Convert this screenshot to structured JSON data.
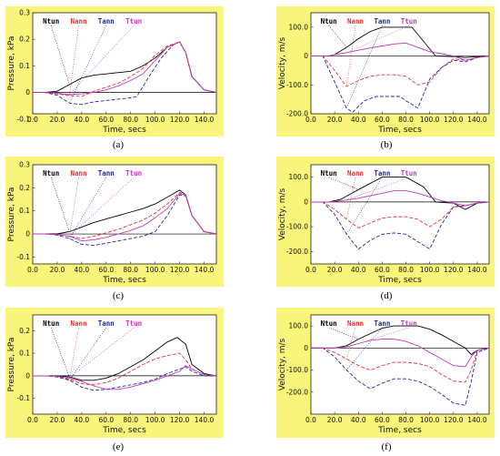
{
  "colors": {
    "panel_bg": "#f9f57a",
    "Ntun": "#000000",
    "Nann": "#e8322f",
    "Tann": "#1f2a9e",
    "Ttun": "#c13ab5"
  },
  "chart_data": [
    {
      "type": "line",
      "caption": "(a)",
      "xlabel": "Time, secs",
      "ylabel": "Pressure, kPa",
      "xlim": [
        0,
        150
      ],
      "ylim": [
        -0.08,
        0.3
      ],
      "xticks": [
        "0.0",
        "20.0",
        "40.0",
        "60.0",
        "80.0",
        "100.0",
        "120.0",
        "140.0"
      ],
      "yticks": [
        "-0.1",
        "0",
        "0.1",
        "0.2",
        "0.3"
      ],
      "legend": [
        "Ntun",
        "Nann",
        "Tann",
        "Ttun"
      ],
      "series": [
        {
          "name": "Ntun",
          "x": [
            0,
            10,
            20,
            30,
            40,
            50,
            60,
            70,
            80,
            90,
            100,
            110,
            120,
            125,
            130,
            140,
            150
          ],
          "y": [
            0,
            0,
            0.005,
            0.03,
            0.055,
            0.065,
            0.07,
            0.075,
            0.08,
            0.1,
            0.13,
            0.17,
            0.19,
            0.15,
            0.06,
            0.01,
            0
          ]
        },
        {
          "name": "Nann",
          "x": [
            0,
            10,
            20,
            30,
            40,
            50,
            60,
            70,
            80,
            90,
            100,
            110,
            120,
            125,
            130,
            140,
            150
          ],
          "y": [
            0,
            0,
            -0.005,
            -0.012,
            -0.015,
            0.005,
            0.02,
            0.035,
            0.06,
            0.09,
            0.14,
            0.175,
            0.19,
            0.15,
            0.06,
            0.01,
            0
          ]
        },
        {
          "name": "Tann",
          "x": [
            0,
            10,
            20,
            30,
            40,
            50,
            60,
            70,
            80,
            85,
            95,
            105,
            115,
            120,
            125,
            130,
            140,
            150
          ],
          "y": [
            0,
            0,
            -0.01,
            -0.04,
            -0.045,
            -0.035,
            -0.03,
            -0.025,
            -0.02,
            -0.015,
            0.06,
            0.13,
            0.18,
            0.19,
            0.15,
            0.06,
            0.01,
            0
          ]
        },
        {
          "name": "Ttun",
          "x": [
            0,
            10,
            20,
            30,
            40,
            50,
            60,
            70,
            80,
            90,
            100,
            110,
            120,
            125,
            130,
            140,
            150
          ],
          "y": [
            0,
            0,
            -0.003,
            -0.008,
            -0.005,
            0,
            0.01,
            0.025,
            0.045,
            0.07,
            0.12,
            0.17,
            0.19,
            0.15,
            0.06,
            0.01,
            0
          ]
        }
      ]
    },
    {
      "type": "line",
      "caption": "(b)",
      "xlabel": "Time, secs",
      "ylabel": "Velocity, m/s",
      "xlim": [
        0,
        150
      ],
      "ylim": [
        -200,
        150
      ],
      "xticks": [
        "0.0",
        "20.0",
        "40.0",
        "60.0",
        "80.0",
        "100.0",
        "120.0",
        "140.0"
      ],
      "yticks": [
        "-200.0",
        "-100.0",
        "0",
        "100.0"
      ],
      "legend": [
        "Ntun",
        "Nann",
        "Tann",
        "Ttun"
      ],
      "series": [
        {
          "name": "Ntun",
          "x": [
            0,
            15,
            20,
            30,
            40,
            50,
            60,
            85,
            105,
            120,
            130,
            140,
            150
          ],
          "y": [
            0,
            0,
            5,
            30,
            60,
            85,
            100,
            100,
            0,
            -2,
            -5,
            -2,
            0
          ]
        },
        {
          "name": "Nann",
          "x": [
            0,
            10,
            20,
            30,
            40,
            50,
            60,
            70,
            80,
            90,
            100,
            110,
            120,
            130,
            140,
            150
          ],
          "y": [
            0,
            0,
            -50,
            -105,
            -85,
            -70,
            -65,
            -65,
            -70,
            -100,
            -90,
            -40,
            -10,
            -15,
            -5,
            0
          ]
        },
        {
          "name": "Tann",
          "x": [
            0,
            10,
            20,
            30,
            35,
            45,
            55,
            65,
            75,
            80,
            90,
            100,
            110,
            120,
            130,
            140,
            150
          ],
          "y": [
            0,
            0,
            -90,
            -180,
            -195,
            -155,
            -140,
            -140,
            -140,
            -155,
            -180,
            -80,
            -40,
            -15,
            -20,
            -5,
            0
          ]
        },
        {
          "name": "Ttun",
          "x": [
            0,
            15,
            20,
            30,
            40,
            50,
            60,
            70,
            80,
            90,
            100,
            110,
            120,
            130,
            140,
            150
          ],
          "y": [
            0,
            0,
            5,
            12,
            20,
            28,
            35,
            42,
            45,
            30,
            15,
            8,
            0,
            -15,
            -5,
            0
          ]
        }
      ]
    },
    {
      "type": "line",
      "caption": "(c)",
      "xlabel": "Time, secs",
      "ylabel": "Pressure, kPa",
      "xlim": [
        0,
        150
      ],
      "ylim": [
        -0.13,
        0.3
      ],
      "xticks": [
        "0.0",
        "20.0",
        "40.0",
        "60.0",
        "80.0",
        "100.0",
        "120.0",
        "140.0"
      ],
      "yticks": [
        "-0.1",
        "0",
        "0.1",
        "0.2",
        "0.3"
      ],
      "legend": [
        "Ntun",
        "Nann",
        "Tann",
        "Ttun"
      ],
      "series": [
        {
          "name": "Ntun",
          "x": [
            0,
            10,
            20,
            30,
            40,
            50,
            60,
            70,
            80,
            90,
            100,
            110,
            120,
            125,
            130,
            140,
            150
          ],
          "y": [
            0,
            0,
            0,
            0.01,
            0.03,
            0.05,
            0.065,
            0.08,
            0.095,
            0.11,
            0.13,
            0.16,
            0.19,
            0.17,
            0.08,
            0.01,
            0
          ]
        },
        {
          "name": "Nann",
          "x": [
            0,
            10,
            20,
            30,
            40,
            50,
            60,
            70,
            80,
            90,
            100,
            110,
            120,
            125,
            130,
            140,
            150
          ],
          "y": [
            0,
            0,
            -0.003,
            -0.01,
            -0.02,
            -0.01,
            0.005,
            0.02,
            0.04,
            0.06,
            0.09,
            0.13,
            0.18,
            0.17,
            0.08,
            0.01,
            0
          ]
        },
        {
          "name": "Tann",
          "x": [
            0,
            10,
            20,
            30,
            40,
            50,
            60,
            70,
            80,
            90,
            100,
            110,
            120,
            125,
            130,
            140,
            150
          ],
          "y": [
            0,
            0,
            -0.005,
            -0.02,
            -0.045,
            -0.05,
            -0.04,
            -0.03,
            -0.02,
            -0.01,
            0.01,
            0.08,
            0.17,
            0.165,
            0.08,
            0.01,
            0
          ]
        },
        {
          "name": "Ttun",
          "x": [
            0,
            10,
            20,
            30,
            40,
            50,
            60,
            70,
            80,
            90,
            100,
            110,
            120,
            125,
            130,
            140,
            150
          ],
          "y": [
            0,
            0,
            -0.003,
            -0.01,
            -0.03,
            -0.025,
            -0.015,
            0,
            0.015,
            0.035,
            0.07,
            0.11,
            0.175,
            0.17,
            0.08,
            0.01,
            0
          ]
        }
      ]
    },
    {
      "type": "line",
      "caption": "(d)",
      "xlabel": "Time, secs",
      "ylabel": "Velocity, m/s",
      "xlim": [
        0,
        150
      ],
      "ylim": [
        -250,
        150
      ],
      "xticks": [
        "0.0",
        "20.0",
        "40.0",
        "60.0",
        "80.0",
        "100.0",
        "120.0",
        "140.0"
      ],
      "yticks": [
        "-200.0",
        "-100.0",
        "0",
        "100.0"
      ],
      "legend": [
        "Ntun",
        "Nann",
        "Tann",
        "Ttun"
      ],
      "series": [
        {
          "name": "Ntun",
          "x": [
            0,
            15,
            25,
            40,
            60,
            80,
            95,
            105,
            120,
            130,
            140,
            150
          ],
          "y": [
            0,
            0,
            10,
            50,
            100,
            100,
            60,
            0,
            -5,
            -30,
            -5,
            0
          ]
        },
        {
          "name": "Nann",
          "x": [
            0,
            10,
            20,
            30,
            40,
            50,
            60,
            70,
            80,
            90,
            100,
            110,
            120,
            130,
            140,
            150
          ],
          "y": [
            0,
            0,
            -30,
            -70,
            -105,
            -85,
            -65,
            -60,
            -60,
            -70,
            -100,
            -70,
            -20,
            -15,
            -5,
            0
          ]
        },
        {
          "name": "Tann",
          "x": [
            0,
            10,
            20,
            30,
            40,
            50,
            60,
            70,
            80,
            90,
            100,
            110,
            120,
            130,
            140,
            150
          ],
          "y": [
            0,
            0,
            -50,
            -130,
            -190,
            -155,
            -130,
            -125,
            -130,
            -160,
            -190,
            -90,
            -20,
            -15,
            -5,
            0
          ]
        },
        {
          "name": "Ttun",
          "x": [
            0,
            15,
            20,
            30,
            40,
            50,
            60,
            70,
            80,
            90,
            100,
            110,
            120,
            130,
            140,
            150
          ],
          "y": [
            0,
            0,
            2,
            8,
            15,
            25,
            35,
            45,
            45,
            35,
            20,
            5,
            -5,
            -15,
            -5,
            0
          ]
        }
      ]
    },
    {
      "type": "line",
      "caption": "(e)",
      "xlabel": "Time, secs",
      "ylabel": "Pressure, kPa",
      "xlim": [
        0,
        150
      ],
      "ylim": [
        -0.17,
        0.27
      ],
      "xticks": [
        "0.0",
        "20.0",
        "40.0",
        "60.0",
        "80.0",
        "100.0",
        "120.0",
        "140.0"
      ],
      "yticks": [
        "-0.1",
        "0",
        "0.1",
        "0.2"
      ],
      "legend": [
        "Ntun",
        "Nann",
        "Tann",
        "Ttun"
      ],
      "series": [
        {
          "name": "Ntun",
          "x": [
            0,
            10,
            20,
            30,
            40,
            50,
            60,
            70,
            80,
            90,
            100,
            110,
            118,
            125,
            130,
            140,
            150
          ],
          "y": [
            0,
            0,
            0,
            -0.005,
            -0.02,
            -0.02,
            -0.01,
            0.01,
            0.04,
            0.07,
            0.11,
            0.15,
            0.17,
            0.14,
            0.05,
            0.01,
            0
          ]
        },
        {
          "name": "Nann",
          "x": [
            0,
            10,
            20,
            30,
            40,
            50,
            60,
            70,
            80,
            90,
            100,
            110,
            120,
            125,
            130,
            140,
            150
          ],
          "y": [
            0,
            0,
            -0.005,
            -0.015,
            -0.035,
            -0.04,
            -0.03,
            -0.01,
            0.02,
            0.05,
            0.075,
            0.09,
            0.1,
            0.07,
            0.03,
            0.005,
            0
          ]
        },
        {
          "name": "Tann",
          "x": [
            0,
            10,
            20,
            30,
            40,
            50,
            60,
            70,
            80,
            90,
            100,
            110,
            120,
            125,
            130,
            140,
            150
          ],
          "y": [
            0,
            0,
            -0.005,
            -0.02,
            -0.05,
            -0.065,
            -0.06,
            -0.05,
            -0.04,
            -0.03,
            -0.015,
            0.01,
            0.03,
            0.04,
            0.02,
            0,
            0
          ]
        },
        {
          "name": "Ttun",
          "x": [
            0,
            10,
            20,
            30,
            40,
            50,
            60,
            70,
            80,
            90,
            100,
            110,
            120,
            125,
            130,
            140,
            150
          ],
          "y": [
            0,
            0,
            -0.003,
            -0.01,
            -0.025,
            -0.045,
            -0.06,
            -0.06,
            -0.05,
            -0.035,
            -0.02,
            0,
            0.02,
            0.045,
            0.03,
            0.005,
            0
          ]
        }
      ]
    },
    {
      "type": "line",
      "caption": "(f)",
      "xlabel": "Time, secs",
      "ylabel": "Velocity, m/s",
      "xlim": [
        0,
        150
      ],
      "ylim": [
        -300,
        150
      ],
      "xticks": [
        "0.0",
        "20.0",
        "40.0",
        "60.0",
        "80.0",
        "100.0",
        "120.0",
        "140.0"
      ],
      "yticks": [
        "-200.0",
        "-100.0",
        "0",
        "100.0"
      ],
      "legend": [
        "Ntun",
        "Nann",
        "Tann",
        "Ttun"
      ],
      "series": [
        {
          "name": "Ntun",
          "x": [
            0,
            20,
            30,
            40,
            50,
            60,
            70,
            80,
            90,
            100,
            110,
            120,
            130,
            135,
            140,
            150
          ],
          "y": [
            0,
            0,
            10,
            40,
            65,
            90,
            100,
            100,
            100,
            85,
            60,
            30,
            0,
            -30,
            -10,
            0
          ]
        },
        {
          "name": "Nann",
          "x": [
            0,
            10,
            20,
            30,
            40,
            50,
            60,
            70,
            80,
            90,
            100,
            110,
            120,
            130,
            135,
            140,
            150
          ],
          "y": [
            0,
            0,
            -20,
            -50,
            -80,
            -100,
            -80,
            -65,
            -65,
            -70,
            -85,
            -120,
            -150,
            -155,
            -100,
            -10,
            0
          ]
        },
        {
          "name": "Tann",
          "x": [
            0,
            10,
            20,
            30,
            40,
            50,
            60,
            70,
            80,
            90,
            100,
            110,
            120,
            130,
            135,
            140,
            150
          ],
          "y": [
            0,
            0,
            -40,
            -100,
            -150,
            -185,
            -160,
            -140,
            -140,
            -150,
            -175,
            -210,
            -250,
            -260,
            -150,
            -20,
            0
          ]
        },
        {
          "name": "Ttun",
          "x": [
            0,
            20,
            30,
            40,
            50,
            60,
            70,
            80,
            90,
            100,
            110,
            120,
            130,
            135,
            140,
            150
          ],
          "y": [
            0,
            0,
            5,
            20,
            35,
            40,
            40,
            30,
            10,
            -20,
            -50,
            -80,
            -85,
            -40,
            -10,
            0
          ]
        }
      ]
    }
  ]
}
